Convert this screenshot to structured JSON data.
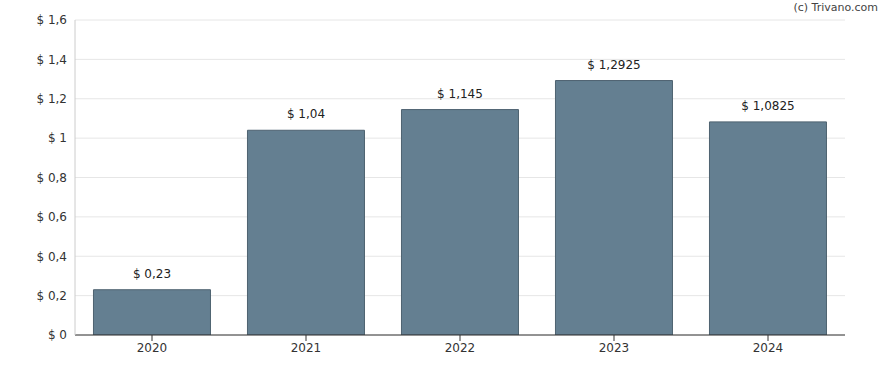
{
  "chart_data": {
    "type": "bar",
    "categories": [
      "2020",
      "2021",
      "2022",
      "2023",
      "2024"
    ],
    "values": [
      0.23,
      1.04,
      1.145,
      1.2925,
      1.0825
    ],
    "value_labels": [
      "$ 0,23",
      "$ 1,04",
      "$ 1,145",
      "$ 1,2925",
      "$ 1,0825"
    ],
    "data_labels": true,
    "color": "#647f91",
    "ylim": [
      0,
      1.6
    ],
    "yticks": [
      {
        "value": 0,
        "label": "$ 0"
      },
      {
        "value": 0.2,
        "label": "$ 0,2"
      },
      {
        "value": 0.4,
        "label": "$ 0,4"
      },
      {
        "value": 0.6,
        "label": "$ 0,6"
      },
      {
        "value": 0.8,
        "label": "$ 0,8"
      },
      {
        "value": 1,
        "label": "$ 1"
      },
      {
        "value": 1.2,
        "label": "$ 1,2"
      },
      {
        "value": 1.4,
        "label": "$ 1,4"
      },
      {
        "value": 1.6,
        "label": "$ 1,6"
      }
    ],
    "grid": true,
    "annotations": [
      "(c) Trivano.com"
    ]
  }
}
